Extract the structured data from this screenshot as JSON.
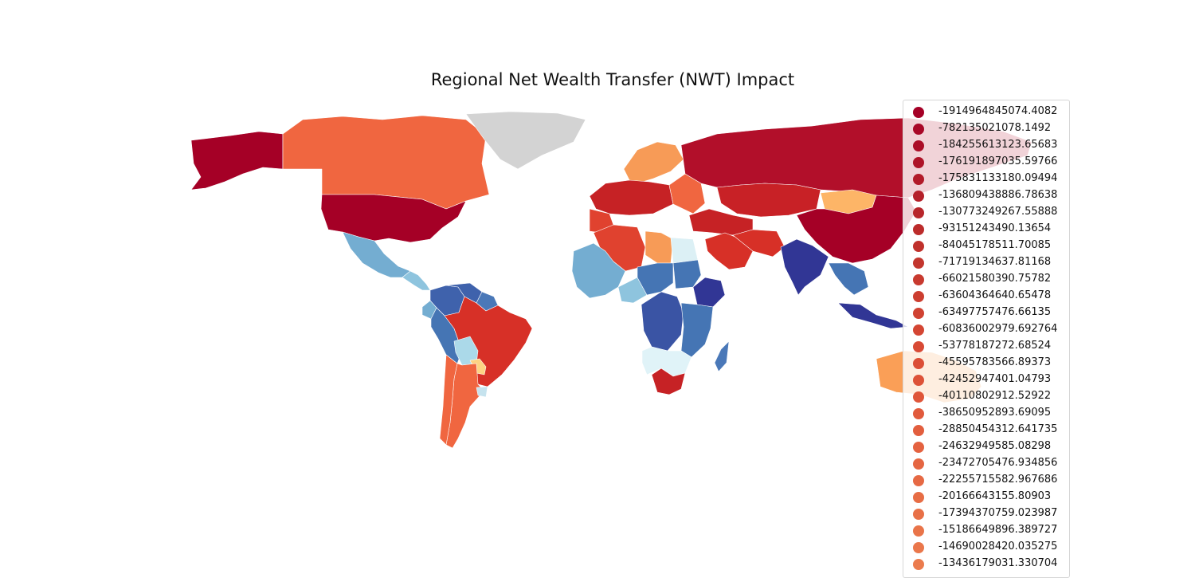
{
  "title": "Regional Net Wealth Transfer (NWT) Impact",
  "color_scheme": "RdYlBu",
  "no_data_color": "#d3d3d3",
  "legend": {
    "placement": "right",
    "entries": [
      {
        "label": "-1914964845074.4082",
        "color": "#a50026"
      },
      {
        "label": "-782135021078.1492",
        "color": "#a80727"
      },
      {
        "label": "-184255613123.65683",
        "color": "#ab0d27"
      },
      {
        "label": "-176191897035.59766",
        "color": "#ae1328"
      },
      {
        "label": "-175831133180.09494",
        "color": "#b21a29"
      },
      {
        "label": "-136809438886.78638",
        "color": "#b5202a"
      },
      {
        "label": "-130773249267.55888",
        "color": "#b8262b"
      },
      {
        "label": "-93151243490.13654",
        "color": "#bc2c2b"
      },
      {
        "label": "-84045178511.70085",
        "color": "#c0312c"
      },
      {
        "label": "-71719134637.81168",
        "color": "#c3362e"
      },
      {
        "label": "-66021580390.75782",
        "color": "#c83a2f"
      },
      {
        "label": "-63604364640.65478",
        "color": "#cc3e30"
      },
      {
        "label": "-63497757476.66135",
        "color": "#d04232"
      },
      {
        "label": "-60836002979.692764",
        "color": "#d44633"
      },
      {
        "label": "-53778187272.68524",
        "color": "#d84a35"
      },
      {
        "label": "-45595783566.89373",
        "color": "#db4e36"
      },
      {
        "label": "-42452947401.04793",
        "color": "#dd5238"
      },
      {
        "label": "-40110802912.52922",
        "color": "#df563a"
      },
      {
        "label": "-38650952893.69095",
        "color": "#e15a3c"
      },
      {
        "label": "-28850454312.641735",
        "color": "#e25e3e"
      },
      {
        "label": "-24632949585.08298",
        "color": "#e46240"
      },
      {
        "label": "-23472705476.934856",
        "color": "#e56642"
      },
      {
        "label": "-22255715582.967686",
        "color": "#e66944"
      },
      {
        "label": "-20166643155.80903",
        "color": "#e76d45"
      },
      {
        "label": "-17394370759.023987",
        "color": "#e87047"
      },
      {
        "label": "-15186649896.389727",
        "color": "#e97449"
      },
      {
        "label": "-14690028420.035275",
        "color": "#ea774b"
      },
      {
        "label": "-13436179031.330704",
        "color": "#eb7b4d"
      }
    ]
  },
  "regions": [
    {
      "name": "Alaska",
      "color": "#a50026"
    },
    {
      "name": "Canada",
      "color": "#f06640"
    },
    {
      "name": "Greenland",
      "color": "#d3d3d3"
    },
    {
      "name": "United States",
      "color": "#a50026"
    },
    {
      "name": "Mexico",
      "color": "#74add1"
    },
    {
      "name": "Central America",
      "color": "#8ec4de"
    },
    {
      "name": "Colombia",
      "color": "#3f62ac"
    },
    {
      "name": "Venezuela",
      "color": "#3f62ac"
    },
    {
      "name": "Guianas",
      "color": "#4a78b8"
    },
    {
      "name": "Ecuador",
      "color": "#74add1"
    },
    {
      "name": "Peru",
      "color": "#4575b4"
    },
    {
      "name": "Brazil",
      "color": "#d73027"
    },
    {
      "name": "Bolivia",
      "color": "#abd9e9"
    },
    {
      "name": "Paraguay",
      "color": "#fdd384"
    },
    {
      "name": "Argentina",
      "color": "#f06640"
    },
    {
      "name": "Chile",
      "color": "#f06640"
    },
    {
      "name": "Uruguay",
      "color": "#c6e3ee"
    },
    {
      "name": "Scandinavia",
      "color": "#f79b57"
    },
    {
      "name": "Western Europe",
      "color": "#c62225"
    },
    {
      "name": "Iberia",
      "color": "#e0422f"
    },
    {
      "name": "Eastern Europe",
      "color": "#f06640"
    },
    {
      "name": "Russia",
      "color": "#b20f2a"
    },
    {
      "name": "Kazakhstan",
      "color": "#c82126"
    },
    {
      "name": "Mongolia",
      "color": "#fdb567"
    },
    {
      "name": "China",
      "color": "#a50026"
    },
    {
      "name": "Middle East",
      "color": "#c62225"
    },
    {
      "name": "Saudi Arabia",
      "color": "#d73027"
    },
    {
      "name": "Iran",
      "color": "#d73027"
    },
    {
      "name": "Algeria",
      "color": "#e0422f"
    },
    {
      "name": "Libya",
      "color": "#f79b57"
    },
    {
      "name": "Egypt",
      "color": "#dcf0f5"
    },
    {
      "name": "West Africa",
      "color": "#74add1"
    },
    {
      "name": "Nigeria",
      "color": "#8ec4de"
    },
    {
      "name": "Central Africa",
      "color": "#4575b4"
    },
    {
      "name": "Sudan",
      "color": "#4575b4"
    },
    {
      "name": "Ethiopia",
      "color": "#313695"
    },
    {
      "name": "DR Congo",
      "color": "#3a54a4"
    },
    {
      "name": "East Africa",
      "color": "#4575b4"
    },
    {
      "name": "Southern Africa",
      "color": "#e0f3f8"
    },
    {
      "name": "South Africa",
      "color": "#c62225"
    },
    {
      "name": "Madagascar",
      "color": "#4a78b8"
    },
    {
      "name": "India",
      "color": "#313695"
    },
    {
      "name": "Southeast Asia",
      "color": "#4575b4"
    },
    {
      "name": "Indonesia",
      "color": "#313695"
    },
    {
      "name": "Australia",
      "color": "#fa9f57"
    }
  ]
}
